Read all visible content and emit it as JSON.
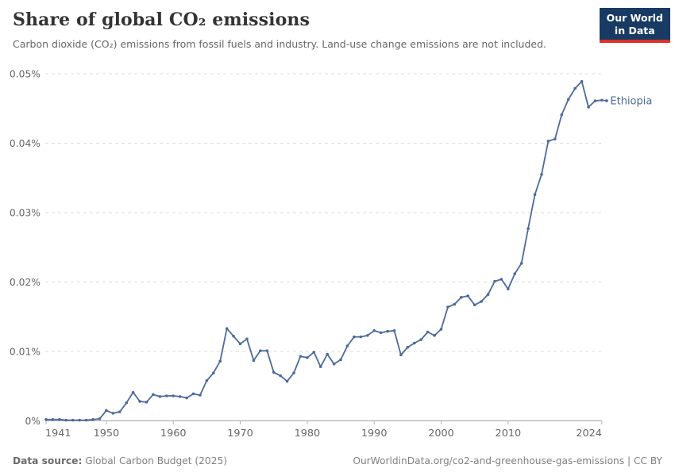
{
  "header": {
    "title": "Share of global CO₂ emissions",
    "subtitle": "Carbon dioxide (CO₂) emissions from fossil fuels and industry. Land-use change emissions are not included.",
    "logo": {
      "line1": "Our World",
      "line2": "in Data"
    }
  },
  "footer": {
    "source_label": "Data source:",
    "source_value": "Global Carbon Budget (2025)",
    "link": "OurWorldinData.org/co2-and-greenhouse-gas-emissions | CC BY"
  },
  "colors": {
    "line": "#4c6a9c",
    "entity_label": "#4c6a9c",
    "grid": "#dcdcdc",
    "axis": "#a3a3a3",
    "tick": "#b3b3b3",
    "tick_label": "#666666",
    "logo_navy": "#183a63",
    "logo_red": "#dc3128"
  },
  "chart_data": {
    "type": "line",
    "title": "Share of global CO₂ emissions",
    "entity_label": "Ethiopia",
    "unit": "%",
    "grid": true,
    "legend_position": "end-of-line",
    "ylim": [
      0,
      0.05
    ],
    "yticks": [
      {
        "value": 0,
        "label": "0%"
      },
      {
        "value": 0.01,
        "label": "0.01%"
      },
      {
        "value": 0.02,
        "label": "0.02%"
      },
      {
        "value": 0.03,
        "label": "0.03%"
      },
      {
        "value": 0.04,
        "label": "0.04%"
      },
      {
        "value": 0.05,
        "label": "0.05%"
      }
    ],
    "xticks": [
      1941,
      1950,
      1960,
      1970,
      1980,
      1990,
      2000,
      2010,
      2024
    ],
    "x": [
      1941,
      1942,
      1943,
      1944,
      1945,
      1946,
      1947,
      1948,
      1949,
      1950,
      1951,
      1952,
      1953,
      1954,
      1955,
      1956,
      1957,
      1958,
      1959,
      1960,
      1961,
      1962,
      1963,
      1964,
      1965,
      1966,
      1967,
      1968,
      1969,
      1970,
      1971,
      1972,
      1973,
      1974,
      1975,
      1976,
      1977,
      1978,
      1979,
      1980,
      1981,
      1982,
      1983,
      1984,
      1985,
      1986,
      1987,
      1988,
      1989,
      1990,
      1991,
      1992,
      1993,
      1994,
      1995,
      1996,
      1997,
      1998,
      1999,
      2000,
      2001,
      2002,
      2003,
      2004,
      2005,
      2006,
      2007,
      2008,
      2009,
      2010,
      2011,
      2012,
      2013,
      2014,
      2015,
      2016,
      2017,
      2018,
      2019,
      2020,
      2021,
      2022,
      2023,
      2024
    ],
    "series": [
      {
        "name": "Ethiopia",
        "values": [
          0.0002,
          0.0002,
          0.0002,
          0.0001,
          0.0001,
          0.0001,
          0.0001,
          0.0002,
          0.0003,
          0.0015,
          0.0011,
          0.0013,
          0.0026,
          0.0041,
          0.0028,
          0.0027,
          0.0038,
          0.0035,
          0.0036,
          0.0036,
          0.0035,
          0.0033,
          0.0039,
          0.0037,
          0.0058,
          0.0069,
          0.0086,
          0.0133,
          0.0122,
          0.0111,
          0.0118,
          0.0087,
          0.0101,
          0.0101,
          0.007,
          0.0065,
          0.0057,
          0.0069,
          0.0093,
          0.0091,
          0.0099,
          0.0078,
          0.0096,
          0.0082,
          0.0088,
          0.0108,
          0.0121,
          0.0121,
          0.0123,
          0.013,
          0.0127,
          0.0129,
          0.013,
          0.0095,
          0.0106,
          0.0112,
          0.0117,
          0.0128,
          0.0123,
          0.0132,
          0.0164,
          0.0168,
          0.0178,
          0.018,
          0.0167,
          0.0172,
          0.0182,
          0.0201,
          0.0204,
          0.019,
          0.0212,
          0.0227,
          0.0277,
          0.0326,
          0.0355,
          0.0403,
          0.0406,
          0.0441,
          0.0463,
          0.0479,
          0.0489,
          0.0452,
          0.0461,
          0.0462
        ]
      }
    ]
  }
}
